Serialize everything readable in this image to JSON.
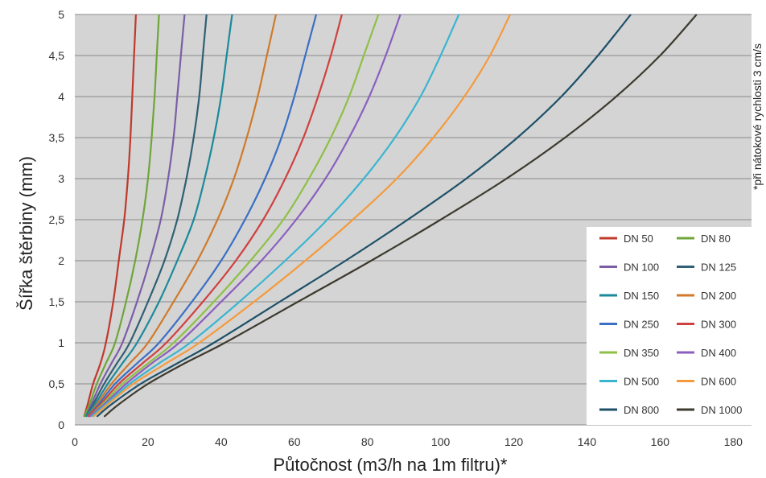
{
  "chart_data": {
    "type": "line",
    "title": "",
    "xlabel": "Půtočnost (m3/h na 1m filtru)*",
    "ylabel": "Šířka štěrbiny (mm)",
    "note": "*při nátokové rychlosti 3 cm/s",
    "xlim": [
      0,
      185
    ],
    "ylim": [
      0,
      5
    ],
    "x_ticks": [
      "0",
      "20",
      "40",
      "60",
      "80",
      "100",
      "120",
      "140",
      "160",
      "180"
    ],
    "y_ticks": [
      "0",
      "0,5",
      "1",
      "1,5",
      "2",
      "2,5",
      "3",
      "3,5",
      "4",
      "4,5",
      "5"
    ],
    "grid": "horizontal",
    "legend_position": "bottom-right",
    "plot_background": "#d4d4d4",
    "series": [
      {
        "name": "DN 50",
        "color": "#c0392b",
        "points": [
          [
            2.5,
            0.1
          ],
          [
            3.5,
            0.25
          ],
          [
            5,
            0.5
          ],
          [
            7,
            0.75
          ],
          [
            8.5,
            1
          ],
          [
            10.5,
            1.5
          ],
          [
            12,
            2
          ],
          [
            13.5,
            2.5
          ],
          [
            14.5,
            3
          ],
          [
            15.2,
            3.5
          ],
          [
            15.7,
            4
          ],
          [
            16.2,
            4.5
          ],
          [
            16.7,
            5
          ]
        ]
      },
      {
        "name": "DN 80",
        "color": "#6fa53a",
        "points": [
          [
            2.5,
            0.1
          ],
          [
            4,
            0.25
          ],
          [
            6,
            0.5
          ],
          [
            8.5,
            0.75
          ],
          [
            11,
            1
          ],
          [
            14,
            1.5
          ],
          [
            16.5,
            2
          ],
          [
            18.5,
            2.5
          ],
          [
            20,
            3
          ],
          [
            21,
            3.5
          ],
          [
            21.8,
            4
          ],
          [
            22.4,
            4.5
          ],
          [
            23,
            5
          ]
        ]
      },
      {
        "name": "DN 100",
        "color": "#7b5ea7",
        "points": [
          [
            3,
            0.1
          ],
          [
            4.5,
            0.25
          ],
          [
            7,
            0.5
          ],
          [
            10,
            0.75
          ],
          [
            13,
            1
          ],
          [
            17,
            1.5
          ],
          [
            20.5,
            2
          ],
          [
            23.5,
            2.5
          ],
          [
            25.5,
            3
          ],
          [
            27,
            3.5
          ],
          [
            28,
            4
          ],
          [
            29,
            4.5
          ],
          [
            30,
            5
          ]
        ]
      },
      {
        "name": "DN 125",
        "color": "#2f6073",
        "points": [
          [
            3,
            0.1
          ],
          [
            5,
            0.25
          ],
          [
            8,
            0.5
          ],
          [
            11.5,
            0.75
          ],
          [
            15,
            1
          ],
          [
            20,
            1.5
          ],
          [
            24.5,
            2
          ],
          [
            28,
            2.5
          ],
          [
            30.5,
            3
          ],
          [
            32.5,
            3.5
          ],
          [
            34,
            4
          ],
          [
            35,
            4.5
          ],
          [
            36,
            5
          ]
        ]
      },
      {
        "name": "DN 150",
        "color": "#1a8a9a",
        "points": [
          [
            3,
            0.1
          ],
          [
            5.5,
            0.25
          ],
          [
            9,
            0.5
          ],
          [
            13,
            0.75
          ],
          [
            17,
            1
          ],
          [
            23,
            1.5
          ],
          [
            28,
            2
          ],
          [
            32.5,
            2.5
          ],
          [
            35.5,
            3
          ],
          [
            38,
            3.5
          ],
          [
            40,
            4
          ],
          [
            41.5,
            4.5
          ],
          [
            43,
            5
          ]
        ]
      },
      {
        "name": "DN 200",
        "color": "#d07a2a",
        "points": [
          [
            3.5,
            0.1
          ],
          [
            6,
            0.25
          ],
          [
            10,
            0.5
          ],
          [
            15,
            0.75
          ],
          [
            20,
            1
          ],
          [
            27,
            1.5
          ],
          [
            33.5,
            2
          ],
          [
            39,
            2.5
          ],
          [
            43.5,
            3
          ],
          [
            47,
            3.5
          ],
          [
            50,
            4
          ],
          [
            52.5,
            4.5
          ],
          [
            55,
            5
          ]
        ]
      },
      {
        "name": "DN 250",
        "color": "#3a6fc4",
        "points": [
          [
            3.5,
            0.1
          ],
          [
            6.5,
            0.25
          ],
          [
            11,
            0.5
          ],
          [
            17,
            0.75
          ],
          [
            23,
            1
          ],
          [
            32,
            1.5
          ],
          [
            40,
            2
          ],
          [
            46.5,
            2.5
          ],
          [
            52,
            3
          ],
          [
            56.5,
            3.5
          ],
          [
            60,
            4
          ],
          [
            63,
            4.5
          ],
          [
            66,
            5
          ]
        ]
      },
      {
        "name": "DN 300",
        "color": "#d04040",
        "points": [
          [
            3.5,
            0.1
          ],
          [
            7,
            0.25
          ],
          [
            12,
            0.5
          ],
          [
            18.5,
            0.75
          ],
          [
            25,
            1
          ],
          [
            35,
            1.5
          ],
          [
            44,
            2
          ],
          [
            51.5,
            2.5
          ],
          [
            57.5,
            3
          ],
          [
            62.5,
            3.5
          ],
          [
            66.5,
            4
          ],
          [
            70,
            4.5
          ],
          [
            73,
            5
          ]
        ]
      },
      {
        "name": "DN 350",
        "color": "#8ec045",
        "points": [
          [
            4,
            0.1
          ],
          [
            7.5,
            0.25
          ],
          [
            13,
            0.5
          ],
          [
            20,
            0.75
          ],
          [
            27,
            1
          ],
          [
            38,
            1.5
          ],
          [
            48,
            2
          ],
          [
            57,
            2.5
          ],
          [
            64,
            3
          ],
          [
            70,
            3.5
          ],
          [
            75,
            4
          ],
          [
            79,
            4.5
          ],
          [
            83,
            5
          ]
        ]
      },
      {
        "name": "DN 400",
        "color": "#8a5fbf",
        "points": [
          [
            4,
            0.1
          ],
          [
            8,
            0.25
          ],
          [
            14,
            0.5
          ],
          [
            21,
            0.75
          ],
          [
            28.5,
            1
          ],
          [
            40,
            1.5
          ],
          [
            51,
            2
          ],
          [
            60.5,
            2.5
          ],
          [
            68.5,
            3
          ],
          [
            75,
            3.5
          ],
          [
            80.5,
            4
          ],
          [
            85,
            4.5
          ],
          [
            89,
            5
          ]
        ]
      },
      {
        "name": "DN 500",
        "color": "#3ab5d0",
        "points": [
          [
            4.5,
            0.1
          ],
          [
            8.5,
            0.25
          ],
          [
            15,
            0.5
          ],
          [
            23,
            0.75
          ],
          [
            31.5,
            1
          ],
          [
            45,
            1.5
          ],
          [
            57.5,
            2
          ],
          [
            69,
            2.5
          ],
          [
            79,
            3
          ],
          [
            87.5,
            3.5
          ],
          [
            94.5,
            4
          ],
          [
            100,
            4.5
          ],
          [
            105,
            5
          ]
        ]
      },
      {
        "name": "DN 600",
        "color": "#f59a3c",
        "points": [
          [
            5,
            0.1
          ],
          [
            9,
            0.25
          ],
          [
            16,
            0.5
          ],
          [
            25,
            0.75
          ],
          [
            34,
            1
          ],
          [
            49,
            1.5
          ],
          [
            63,
            2
          ],
          [
            76,
            2.5
          ],
          [
            88,
            3
          ],
          [
            98,
            3.5
          ],
          [
            106.5,
            4
          ],
          [
            113.5,
            4.5
          ],
          [
            119,
            5
          ]
        ]
      },
      {
        "name": "DN 800",
        "color": "#1d5068",
        "points": [
          [
            6,
            0.1
          ],
          [
            10,
            0.25
          ],
          [
            18,
            0.5
          ],
          [
            28,
            0.75
          ],
          [
            38,
            1
          ],
          [
            56,
            1.5
          ],
          [
            74,
            2
          ],
          [
            91,
            2.5
          ],
          [
            107,
            3
          ],
          [
            121,
            3.5
          ],
          [
            133,
            4
          ],
          [
            143,
            4.5
          ],
          [
            152,
            5
          ]
        ]
      },
      {
        "name": "DN 1000",
        "color": "#3d3a2e",
        "points": [
          [
            8,
            0.1
          ],
          [
            12,
            0.25
          ],
          [
            20,
            0.5
          ],
          [
            30,
            0.75
          ],
          [
            41,
            1
          ],
          [
            61,
            1.5
          ],
          [
            81,
            2
          ],
          [
            100,
            2.5
          ],
          [
            118,
            3
          ],
          [
            134,
            3.5
          ],
          [
            148,
            4
          ],
          [
            160,
            4.5
          ],
          [
            170,
            5
          ]
        ]
      }
    ]
  }
}
